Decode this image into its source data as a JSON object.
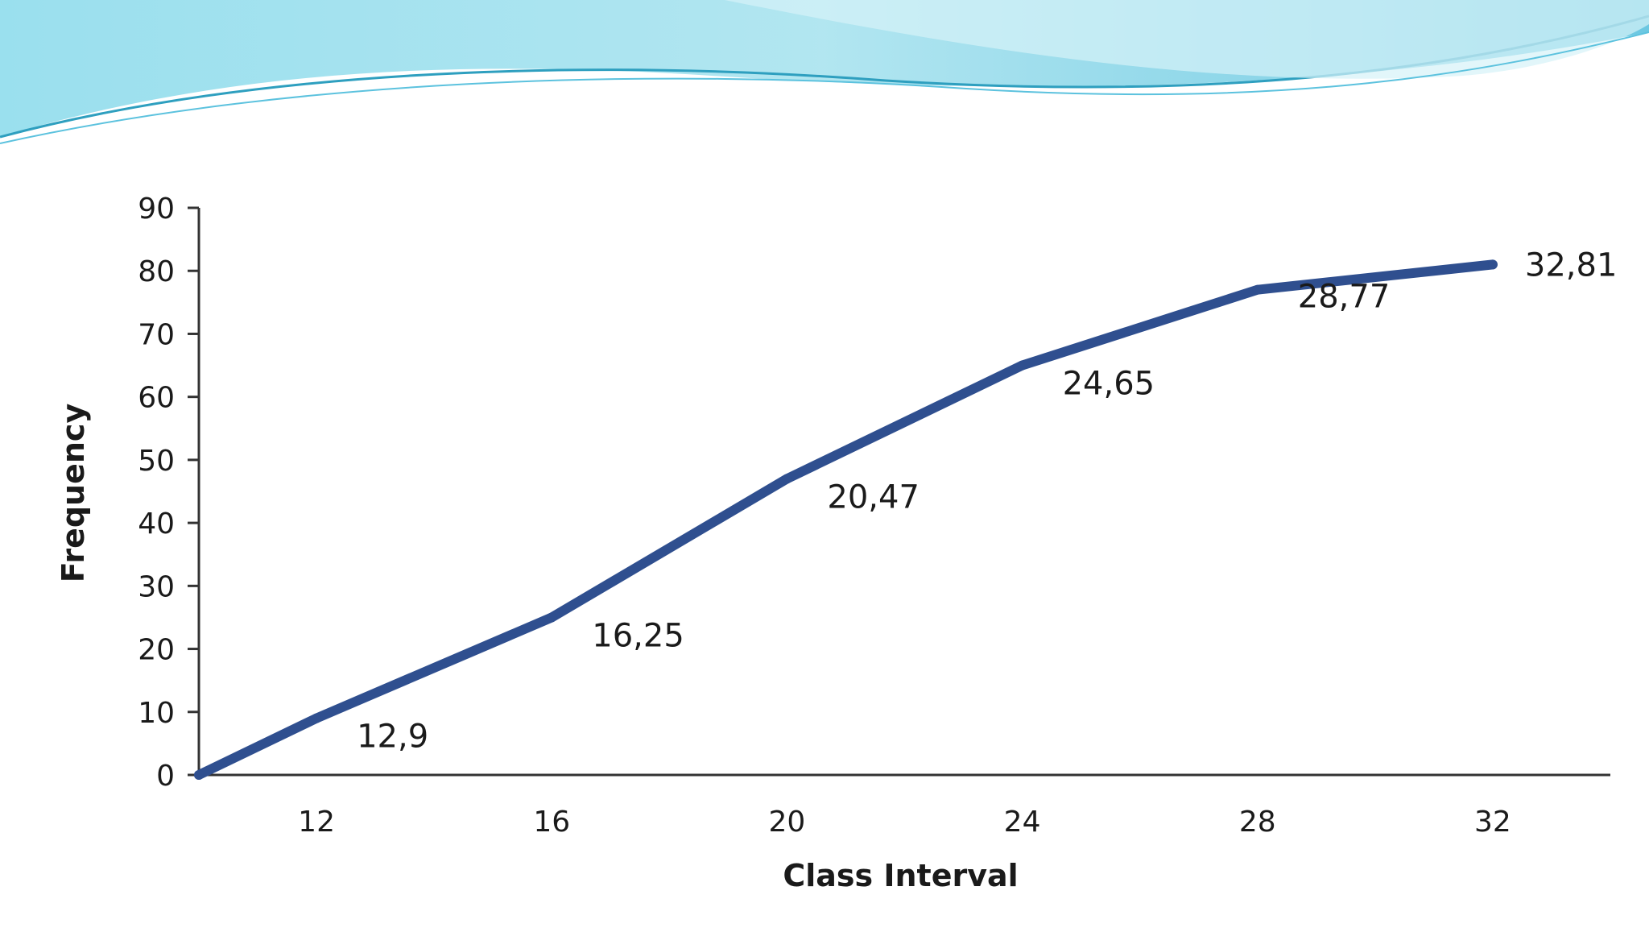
{
  "chart_data": {
    "type": "line",
    "xlabel": "Class Interval",
    "ylabel": "Frequency",
    "x_ticks": [
      "12",
      "16",
      "20",
      "24",
      "28",
      "32"
    ],
    "y_ticks": [
      "0",
      "10",
      "20",
      "30",
      "40",
      "50",
      "60",
      "70",
      "80",
      "90"
    ],
    "xlim": [
      10,
      34
    ],
    "ylim": [
      0,
      90
    ],
    "grid": false,
    "legend": "none",
    "series": [
      {
        "color": "#2f4f8f",
        "x": [
          10,
          12,
          16,
          20,
          24,
          28,
          32
        ],
        "y": [
          0,
          9,
          25,
          47,
          65,
          77,
          81
        ]
      }
    ],
    "data_labels": [
      {
        "x": 12,
        "y": 9,
        "text": "12,9"
      },
      {
        "x": 16,
        "y": 25,
        "text": "16,25"
      },
      {
        "x": 20,
        "y": 47,
        "text": "20,47"
      },
      {
        "x": 24,
        "y": 65,
        "text": "24,65"
      },
      {
        "x": 28,
        "y": 77,
        "text": "28,77"
      },
      {
        "x": 32,
        "y": 81,
        "text": "32,81"
      }
    ]
  },
  "theme": {
    "wave_light": "#b9e8f2",
    "wave_mid": "#7fd3e6",
    "wave_dark": "#4ab6d6",
    "axis_color": "#333333"
  }
}
